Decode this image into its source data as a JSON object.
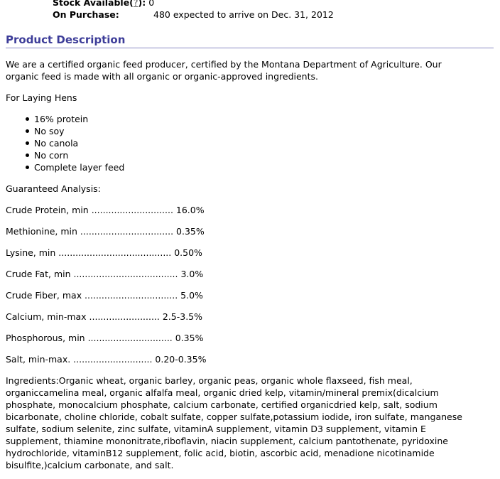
{
  "stock": {
    "label": "Stock Available(",
    "help": "?",
    "label_suffix": "):",
    "value": "0"
  },
  "purchase": {
    "label": "On Purchase:",
    "value": "480 expected to arrive on Dec. 31, 2012"
  },
  "section": {
    "title": "Product Description"
  },
  "description": [
    "We are a certified organic feed producer, certified by the Montana Department of Agriculture. Our",
    "organic feed is made with all organic or organic-approved ingredients."
  ],
  "subtitle": "For Laying Hens",
  "features": [
    "16% protein",
    "No soy",
    "No canola",
    "No corn",
    "Complete layer feed"
  ],
  "analysis": {
    "title": "Guaranteed Analysis:",
    "rows": [
      "Crude Protein, min ............................. 16.0%",
      "Methionine, min ................................. 0.35%",
      "Lysine, min ........................................ 0.50%",
      "Crude Fat, min ..................................... 3.0%",
      "Crude Fiber, max ................................. 5.0%",
      "Calcium, min-max ......................... 2.5-3.5%",
      "Phosphorous, min .............................. 0.35%",
      "Salt, min-max. ............................ 0.20-0.35%"
    ]
  },
  "ingredients": [
    "Ingredients:Organic wheat, organic barley, organic peas, organic whole flaxseed, fish meal,",
    "organiccamelina meal, organic alfalfa meal, organic dried kelp, vitamin/mineral premix(dicalcium",
    "phosphate, monocalcium phosphate, calcium carbonate, certified organicdried kelp, salt, sodium",
    "bicarbonate, choline chloride, cobalt sulfate, copper sulfate,potassium iodide, iron sulfate, manganese",
    "sulfate, sodium selenite, zinc sulfate, vitaminA supplement, vitamin D3 supplement, vitamin E",
    "supplement, thiamine mononitrate,riboflavin, niacin supplement, calcium pantothenate, pyridoxine",
    "hydrochloride, vitaminB12 supplement, folic acid, biotin, ascorbic acid, menadione nicotinamide",
    "bisulfite,)calcium carbonate, and salt."
  ]
}
